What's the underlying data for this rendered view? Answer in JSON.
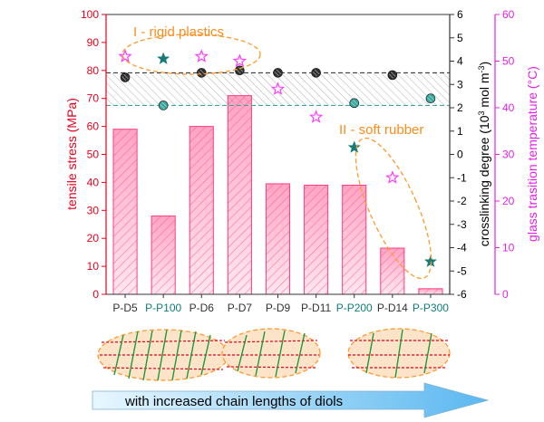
{
  "chart_data": {
    "type": "bar",
    "categories": [
      "P-D5",
      "P-P100",
      "P-D6",
      "P-D7",
      "P-D9",
      "P-D11",
      "P-P200",
      "P-D14",
      "P-P300"
    ],
    "category_colors": [
      "#333333",
      "#0e7c7b",
      "#333333",
      "#333333",
      "#333333",
      "#333333",
      "#0e7c7b",
      "#333333",
      "#0e7c7b"
    ],
    "series": [
      {
        "key": "tensile",
        "axis": "left",
        "type": "bar",
        "color": "#ff4d88",
        "values": [
          59,
          28,
          60,
          71,
          39.5,
          39,
          39,
          16.5,
          2
        ]
      },
      {
        "key": "crosslinking",
        "axis": "right1",
        "type": "scatter",
        "marker": "circle",
        "color": "#2f2f2f",
        "x": [
          "P-D5",
          "P-D6",
          "P-D7",
          "P-D9",
          "P-D11",
          "P-D14"
        ],
        "values": [
          3.3,
          3.5,
          3.6,
          3.5,
          3.5,
          3.4
        ]
      },
      {
        "key": "crosslinking-ppg",
        "axis": "right1",
        "type": "scatter",
        "marker": "circle",
        "color": "#3aa79f",
        "x": [
          "P-P100",
          "P-P200",
          "P-P300"
        ],
        "values": [
          2.1,
          2.2,
          2.4
        ]
      },
      {
        "key": "tg",
        "axis": "right2",
        "type": "scatter",
        "marker": "star",
        "color": "#ff33ff",
        "x": [
          "P-D5",
          "P-D6",
          "P-D7",
          "P-D9",
          "P-D11",
          "P-D14"
        ],
        "values": [
          51,
          51,
          50,
          44,
          38,
          25
        ]
      },
      {
        "key": "tg-ppg",
        "axis": "right2",
        "type": "scatter",
        "marker": "star",
        "color": "#167a78",
        "x": [
          "P-P100",
          "P-P200",
          "P-P300"
        ],
        "values": [
          50.5,
          31.5,
          7
        ]
      }
    ],
    "axes": {
      "left": {
        "label": "tensile stress (MPa)",
        "range": [
          0,
          100
        ],
        "ticks": [
          0,
          10,
          20,
          30,
          40,
          50,
          60,
          70,
          80,
          90,
          100
        ],
        "color": "#e8001c"
      },
      "right1": {
        "label_prefix": "crosslinking degree (10",
        "label_exp1": "3",
        "label_mid": " mol m",
        "label_exp2": "-3",
        "label_suffix": ")",
        "range": [
          -6,
          6
        ],
        "ticks": [
          -6,
          -5,
          -4,
          -3,
          -2,
          -1,
          0,
          1,
          2,
          3,
          4,
          5,
          6
        ],
        "color": "#000000"
      },
      "right2": {
        "label": "glass trasition temperature (°C)",
        "range": [
          0,
          60
        ],
        "ticks": [
          0,
          10,
          20,
          30,
          40,
          50,
          60
        ],
        "color": "#e81fe8"
      }
    },
    "reference_lines": [
      {
        "axis": "right1",
        "value": 3.5,
        "color": "#222222"
      },
      {
        "axis": "right1",
        "value": 2.1,
        "color": "#3aa79f"
      }
    ],
    "annotations": {
      "rigid": "I - rigid plastics",
      "soft": "II - soft rubber",
      "arrow": "with increased chain lengths of diols"
    }
  }
}
